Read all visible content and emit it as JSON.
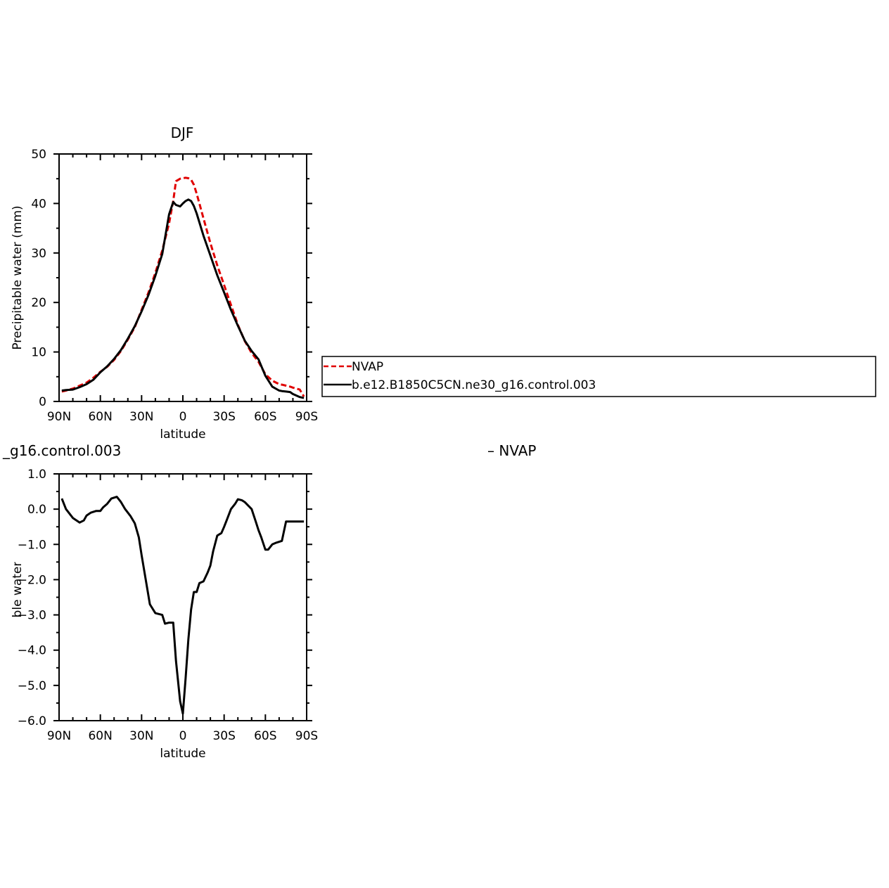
{
  "colors": {
    "nvap": "#e00000",
    "model": "#000000",
    "axis": "#000000",
    "background": "#ffffff"
  },
  "top_panel": {
    "title": "DJF",
    "legend": {
      "nvap_label": "NVAP",
      "model_label": "b.e12.B1850C5CN.ne30_g16.control.003"
    }
  },
  "bottom_panel": {
    "title_left": "_g16.control.003",
    "title_right": "–  NVAP",
    "ylabel_visible": "Precipitable water (mm)"
  },
  "chart_data": [
    {
      "type": "line",
      "title": "DJF",
      "xlabel": "latitude",
      "ylabel": "Precipitable water (mm)",
      "xlim": [
        90,
        -90
      ],
      "ylim": [
        0,
        50
      ],
      "xticks": [
        90,
        60,
        30,
        0,
        -30,
        -60,
        -90
      ],
      "xtick_labels": [
        "90N",
        "60N",
        "30N",
        "0",
        "30S",
        "60S",
        "90S"
      ],
      "yticks": [
        0,
        10,
        20,
        30,
        40,
        50
      ],
      "ytick_labels": [
        "0",
        "10",
        "20",
        "30",
        "40",
        "50"
      ],
      "legend_position": "right, outside plot",
      "series": [
        {
          "name": "NVAP",
          "color": "#e00000",
          "dash": "dashed",
          "x": [
            88,
            85,
            80,
            75,
            70,
            65,
            60,
            55,
            50,
            45,
            40,
            35,
            30,
            25,
            20,
            15,
            10,
            7,
            5,
            2,
            0,
            -2,
            -4,
            -6,
            -8,
            -10,
            -15,
            -20,
            -25,
            -30,
            -35,
            -40,
            -45,
            -50,
            -55,
            -60,
            -65,
            -70,
            -72,
            -75,
            -78,
            -80,
            -85,
            -88
          ],
          "y": [
            2.0,
            2.2,
            2.6,
            3.2,
            3.8,
            4.8,
            6.0,
            7.0,
            8.4,
            10.2,
            12.5,
            15.0,
            18.5,
            22.0,
            26.0,
            30.5,
            36.0,
            40.5,
            44.5,
            45.0,
            45.1,
            45.2,
            45.1,
            44.8,
            43.8,
            42.0,
            37.0,
            32.0,
            27.5,
            23.5,
            19.5,
            15.5,
            12.2,
            9.8,
            8.0,
            5.5,
            4.2,
            3.5,
            3.4,
            3.2,
            3.0,
            2.8,
            2.4,
            1.0
          ]
        },
        {
          "name": "b.e12.B1850C5CN.ne30_g16.control.003",
          "color": "#000000",
          "dash": "solid",
          "x": [
            88,
            85,
            80,
            75,
            70,
            65,
            60,
            55,
            50,
            45,
            40,
            35,
            30,
            25,
            20,
            15,
            10,
            7,
            5,
            2,
            0,
            -2,
            -4,
            -6,
            -8,
            -10,
            -15,
            -20,
            -25,
            -30,
            -35,
            -40,
            -45,
            -50,
            -55,
            -60,
            -65,
            -70,
            -72,
            -75,
            -78,
            -80,
            -85,
            -88
          ],
          "y": [
            2.2,
            2.3,
            2.4,
            2.9,
            3.5,
            4.4,
            5.9,
            7.1,
            8.6,
            10.4,
            12.7,
            15.2,
            18.2,
            21.5,
            25.4,
            29.8,
            37.8,
            40.3,
            39.7,
            39.4,
            40.0,
            40.5,
            40.8,
            40.5,
            39.5,
            38.0,
            33.5,
            29.5,
            25.5,
            22.0,
            18.5,
            15.3,
            12.3,
            10.2,
            8.5,
            5.2,
            3.0,
            2.2,
            2.1,
            2.0,
            1.9,
            1.5,
            0.9,
            0.7
          ]
        }
      ]
    },
    {
      "type": "line",
      "title": "_g16.control.003",
      "xlabel": "latitude",
      "ylabel": "Precipitable water (mm)",
      "xlim": [
        90,
        -90
      ],
      "ylim": [
        -6.0,
        1.0
      ],
      "xticks": [
        90,
        60,
        30,
        0,
        -30,
        -60,
        -90
      ],
      "xtick_labels": [
        "90N",
        "60N",
        "30N",
        "0",
        "30S",
        "60S",
        "90S"
      ],
      "yticks": [
        1.0,
        0.0,
        -1.0,
        -2.0,
        -3.0,
        -4.0,
        -5.0,
        -6.0
      ],
      "ytick_labels": [
        "1.0",
        "0.0",
        "−1.0",
        "−2.0",
        "−3.0",
        "−4.0",
        "−5.0",
        "−6.0"
      ],
      "series": [
        {
          "color": "#000000",
          "dash": "solid",
          "x": [
            88,
            85,
            80,
            75,
            72,
            70,
            67,
            63,
            60,
            58,
            55,
            52,
            48,
            45,
            42,
            38,
            35,
            32,
            30,
            27,
            24,
            20,
            15,
            13,
            10,
            7,
            5,
            2,
            0,
            -2,
            -4,
            -6,
            -8,
            -10,
            -12,
            -15,
            -18,
            -20,
            -22,
            -25,
            -28,
            -30,
            -32,
            -35,
            -38,
            -40,
            -43,
            -45,
            -50,
            -53,
            -55,
            -57,
            -60,
            -62,
            -65,
            -68,
            -72,
            -75,
            -78,
            -80,
            -82,
            -85,
            -88
          ],
          "y": [
            0.3,
            0.0,
            -0.25,
            -0.38,
            -0.32,
            -0.18,
            -0.1,
            -0.05,
            -0.05,
            0.05,
            0.15,
            0.3,
            0.35,
            0.2,
            0.0,
            -0.2,
            -0.4,
            -0.8,
            -1.3,
            -2.0,
            -2.7,
            -2.95,
            -3.0,
            -3.25,
            -3.22,
            -3.22,
            -4.3,
            -5.45,
            -5.8,
            -4.8,
            -3.7,
            -2.85,
            -2.35,
            -2.35,
            -2.1,
            -2.05,
            -1.8,
            -1.6,
            -1.2,
            -0.75,
            -0.68,
            -0.5,
            -0.3,
            0.0,
            0.15,
            0.28,
            0.25,
            0.2,
            0.0,
            -0.35,
            -0.6,
            -0.8,
            -1.15,
            -1.15,
            -1.0,
            -0.95,
            -0.9,
            -0.35,
            -0.35,
            -0.35,
            -0.35,
            -0.35,
            -0.35
          ]
        }
      ]
    }
  ]
}
